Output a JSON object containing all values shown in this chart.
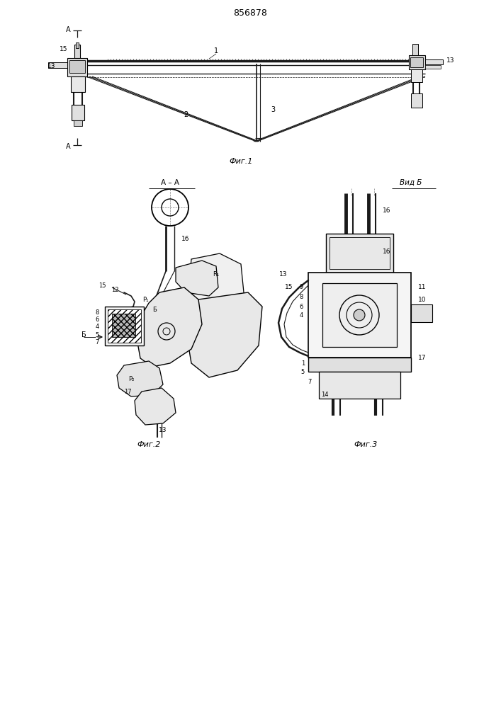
{
  "title": "856878",
  "fig1_caption": "Фиг.1",
  "fig2_caption": "Фиг.2",
  "fig3_caption": "Фиг.3",
  "fig2_title": "А – А",
  "fig3_title": "Вид Б",
  "bg_color": "#ffffff",
  "line_color": "#1a1a1a",
  "page_width": 7.07,
  "page_height": 10.0
}
